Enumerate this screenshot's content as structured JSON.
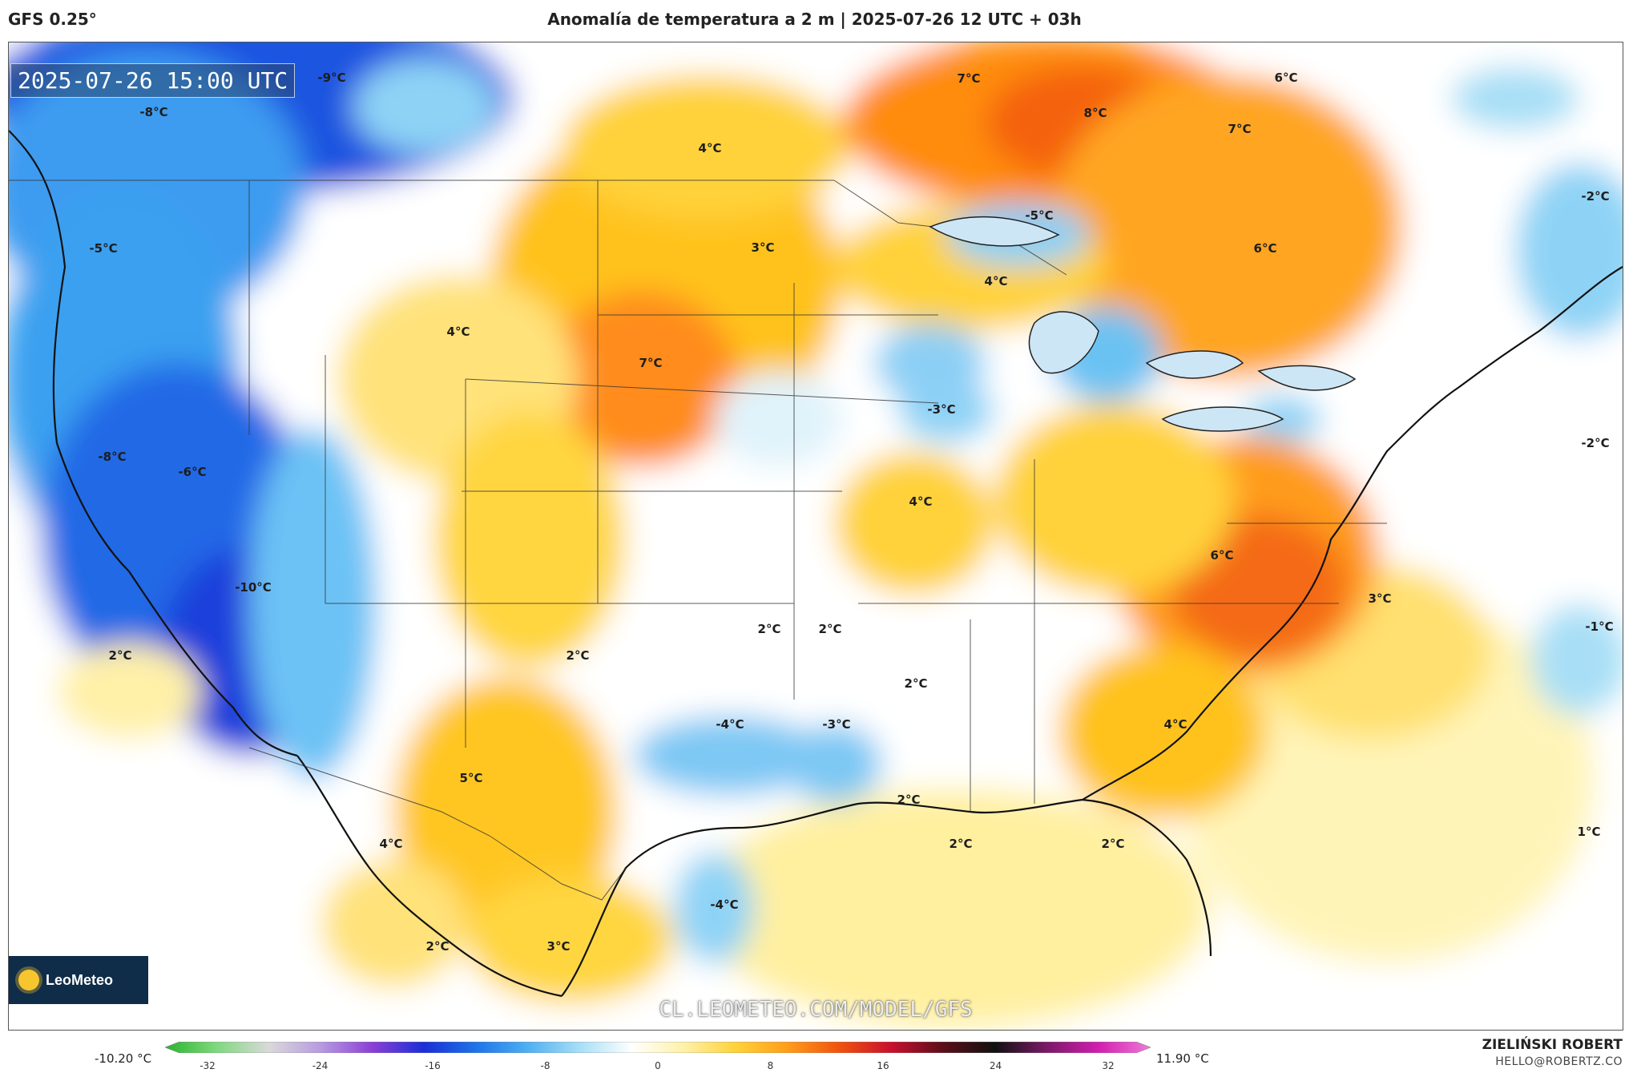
{
  "header": {
    "model": "GFS 0.25°",
    "title": "Anomalía de temperatura a 2 m | 2025-07-26 12 UTC + 03h"
  },
  "map": {
    "valid_time": "2025-07-26 15:00 UTC",
    "watermark_url": "CL.LEOMETEO.COM/MODEL/GFS",
    "logo_text": "LeoMeteo",
    "labels": [
      {
        "text": "-9°C"
      },
      {
        "text": "-8°C"
      },
      {
        "text": "7°C"
      },
      {
        "text": "8°C"
      },
      {
        "text": "6°C"
      },
      {
        "text": "7°C"
      },
      {
        "text": "4°C"
      },
      {
        "text": "-5°C"
      },
      {
        "text": "-2°C"
      },
      {
        "text": "3°C"
      },
      {
        "text": "-5°C"
      },
      {
        "text": "6°C"
      },
      {
        "text": "4°C"
      },
      {
        "text": "4°C"
      },
      {
        "text": "7°C"
      },
      {
        "text": "-3°C"
      },
      {
        "text": "-2°C"
      },
      {
        "text": "-8°C"
      },
      {
        "text": "-6°C"
      },
      {
        "text": "4°C"
      },
      {
        "text": "6°C"
      },
      {
        "text": "-10°C"
      },
      {
        "text": "3°C"
      },
      {
        "text": "-1°C"
      },
      {
        "text": "2°C"
      },
      {
        "text": "2°C"
      },
      {
        "text": "2°C"
      },
      {
        "text": "2°C"
      },
      {
        "text": "2°C"
      },
      {
        "text": "-4°C"
      },
      {
        "text": "-3°C"
      },
      {
        "text": "4°C"
      },
      {
        "text": "5°C"
      },
      {
        "text": "2°C"
      },
      {
        "text": "4°C"
      },
      {
        "text": "2°C"
      },
      {
        "text": "2°C"
      },
      {
        "text": "1°C"
      },
      {
        "text": "-4°C"
      },
      {
        "text": "2°C"
      },
      {
        "text": "3°C"
      }
    ]
  },
  "colorbar": {
    "min_label": "-10.20 °C",
    "max_label": "11.90 °C",
    "ticks": [
      "-32",
      "-24",
      "-16",
      "-8",
      "0",
      "8",
      "16",
      "24",
      "32"
    ],
    "colors": [
      "#2bb32b",
      "#7fd97f",
      "#d9d9d9",
      "#b79be0",
      "#8a3fd6",
      "#1a2fd6",
      "#1e74e8",
      "#4fb0f2",
      "#a8dff6",
      "#ffffff",
      "#fff1a8",
      "#ffd23a",
      "#ff9d1a",
      "#f0520e",
      "#c8102e",
      "#5a0f1a",
      "#111111",
      "#7a1a66",
      "#d21fb0",
      "#f07ad8"
    ]
  },
  "credit": {
    "name": "ZIELIŃSKI ROBERT",
    "email": "HELLO@ROBERTZ.CO"
  }
}
